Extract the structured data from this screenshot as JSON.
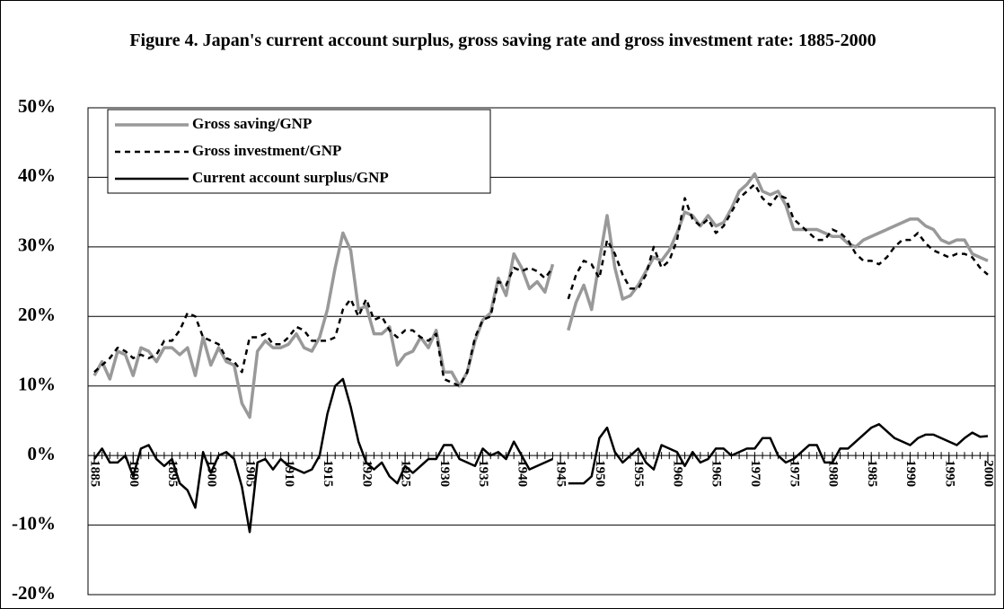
{
  "chart_data": {
    "type": "line",
    "title": "Figure 4. Japan's current account surplus, gross saving rate and gross investment rate: 1885-2000",
    "x": [
      1885,
      1886,
      1887,
      1888,
      1889,
      1890,
      1891,
      1892,
      1893,
      1894,
      1895,
      1896,
      1897,
      1898,
      1899,
      1900,
      1901,
      1902,
      1903,
      1904,
      1905,
      1906,
      1907,
      1908,
      1909,
      1910,
      1911,
      1912,
      1913,
      1914,
      1915,
      1916,
      1917,
      1918,
      1919,
      1920,
      1921,
      1922,
      1923,
      1924,
      1925,
      1926,
      1927,
      1928,
      1929,
      1930,
      1931,
      1932,
      1933,
      1934,
      1935,
      1936,
      1937,
      1938,
      1939,
      1940,
      1941,
      1942,
      1943,
      1944,
      1945,
      1946,
      1947,
      1948,
      1949,
      1950,
      1951,
      1952,
      1953,
      1954,
      1955,
      1956,
      1957,
      1958,
      1959,
      1960,
      1961,
      1962,
      1963,
      1964,
      1965,
      1966,
      1967,
      1968,
      1969,
      1970,
      1971,
      1972,
      1973,
      1974,
      1975,
      1976,
      1977,
      1978,
      1979,
      1980,
      1981,
      1982,
      1983,
      1984,
      1985,
      1986,
      1987,
      1988,
      1989,
      1990,
      1991,
      1992,
      1993,
      1994,
      1995,
      1996,
      1997,
      1998,
      1999,
      2000
    ],
    "xlim": [
      1885,
      2000
    ],
    "xticks": [
      1885,
      1890,
      1895,
      1900,
      1905,
      1910,
      1915,
      1920,
      1925,
      1930,
      1935,
      1940,
      1945,
      1950,
      1955,
      1960,
      1965,
      1970,
      1975,
      1980,
      1985,
      1990,
      1995,
      2000
    ],
    "ylim": [
      -20,
      50
    ],
    "yticks": [
      {
        "value": -20,
        "label": "-20%"
      },
      {
        "value": -10,
        "label": "-10%"
      },
      {
        "value": 0,
        "label": "0%"
      },
      {
        "value": 10,
        "label": "10%"
      },
      {
        "value": 20,
        "label": "20%"
      },
      {
        "value": 30,
        "label": "30%"
      },
      {
        "value": 40,
        "label": "40%"
      },
      {
        "value": 50,
        "label": "50%"
      }
    ],
    "grid": true,
    "legend": "top-left",
    "series": [
      {
        "name": "Gross saving/GNP",
        "color": "#999999",
        "dash": false,
        "values": [
          11.5,
          13.5,
          11,
          15,
          14.5,
          11.5,
          15.5,
          15,
          13.5,
          15.5,
          15.5,
          14.5,
          15.5,
          11.5,
          17,
          13,
          15.5,
          13.5,
          13,
          7.5,
          5.5,
          15,
          16.5,
          15.5,
          15.5,
          16,
          17.5,
          15.5,
          15,
          17,
          21,
          27,
          32,
          29.5,
          21,
          21.5,
          17.5,
          17.5,
          18.5,
          13,
          14.5,
          15,
          17,
          15.5,
          18,
          12,
          12,
          10,
          12,
          16.5,
          19.5,
          20.5,
          25.5,
          23,
          29,
          27,
          24,
          25,
          23.5,
          27.5,
          null,
          18,
          22,
          24.5,
          21,
          28,
          34.5,
          27,
          22.5,
          23,
          24.5,
          26.5,
          28.5,
          28,
          29.5,
          32,
          35,
          34.5,
          33,
          34.5,
          33,
          33.5,
          35.5,
          38,
          39,
          40.5,
          38,
          37.5,
          38,
          36,
          32.5,
          32.5,
          32.5,
          32.5,
          32,
          31.5,
          31.5,
          30.5,
          30,
          31,
          31.5,
          32,
          32.5,
          33,
          33.5,
          34,
          34,
          33,
          32.5,
          31,
          30.5,
          31,
          31,
          29,
          28.5,
          28
        ]
      },
      {
        "name": "Gross investment/GNP",
        "color": "#000000",
        "dash": true,
        "values": [
          12,
          13,
          14,
          15.5,
          15,
          14,
          14.5,
          14,
          14.5,
          16.5,
          16.5,
          18,
          20.5,
          20,
          17,
          16.5,
          16,
          14,
          13.5,
          12,
          17,
          17,
          17.5,
          16,
          16,
          17,
          18.5,
          18,
          16.5,
          16.5,
          16.5,
          17,
          21,
          22.5,
          20,
          22.5,
          19.5,
          20,
          18,
          17,
          18,
          18,
          17,
          16.5,
          17.5,
          11,
          10.5,
          10,
          12,
          17,
          19.5,
          20,
          25,
          24.5,
          27,
          26.5,
          27,
          26.5,
          25.5,
          27,
          null,
          22.5,
          26,
          28,
          27.5,
          25.5,
          31,
          29,
          26,
          24,
          24,
          26,
          30,
          27,
          28,
          31,
          37,
          34,
          33,
          34,
          32,
          33,
          35,
          37,
          38,
          39,
          37,
          36,
          37.5,
          37,
          34,
          33,
          32,
          31,
          31,
          32.5,
          32,
          31,
          29,
          28,
          28,
          27.5,
          28.5,
          30,
          31,
          31,
          32,
          30.5,
          29.5,
          29,
          28.5,
          29,
          29,
          28.5,
          27,
          26
        ]
      },
      {
        "name": "Current account surplus/GNP",
        "color": "#000000",
        "dash": false,
        "values": [
          -0.5,
          1,
          -1,
          -1,
          0,
          -3,
          1,
          1.5,
          -0.5,
          -1.5,
          -0.5,
          -4,
          -5,
          -7.5,
          0.5,
          -2.5,
          0,
          0.5,
          -0.5,
          -4.5,
          -11,
          -1,
          -0.5,
          -2,
          -0.5,
          -1.5,
          -2,
          -2.5,
          -2,
          0,
          6,
          10,
          11,
          7,
          2,
          -1,
          -2,
          -1,
          -3,
          -4,
          -1.5,
          -2.5,
          -1.5,
          -0.5,
          -0.5,
          1.5,
          1.5,
          -0.5,
          -1,
          -1.5,
          1,
          0,
          0.5,
          -0.5,
          2,
          0,
          -2,
          -1.5,
          -1,
          -0.5,
          null,
          -4,
          -4,
          -4,
          -3,
          2.5,
          4,
          0.5,
          -1,
          0,
          1,
          -1,
          -2,
          1.5,
          1,
          0.5,
          -1.5,
          0.5,
          -1,
          -0.5,
          1,
          1,
          0,
          0.5,
          1,
          1,
          2.5,
          2.5,
          0,
          -1,
          -0.5,
          0.5,
          1.5,
          1.5,
          -1,
          -1,
          1,
          1,
          2,
          3,
          4,
          4.5,
          3.5,
          2.5,
          2,
          1.5,
          2.5,
          3,
          3,
          2.5,
          2,
          1.5,
          2.5,
          3.3,
          2.7,
          2.8
        ]
      }
    ]
  }
}
